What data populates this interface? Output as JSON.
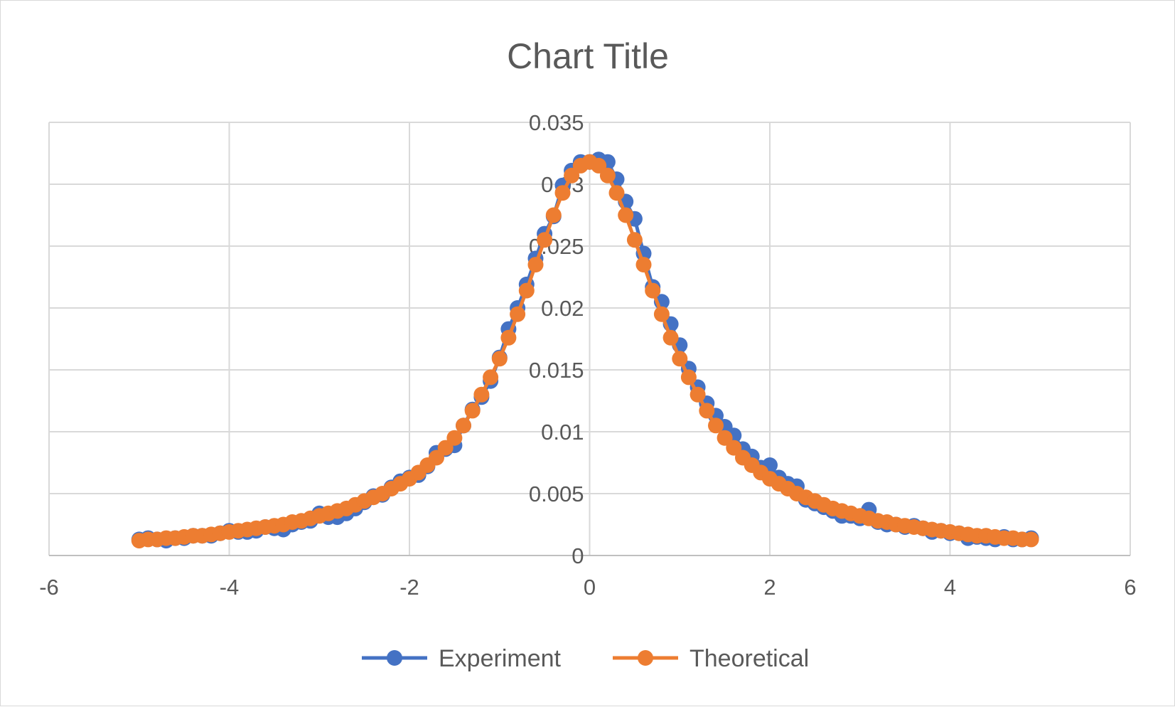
{
  "chart_data": {
    "type": "scatter",
    "title": "Chart Title",
    "xlabel": "",
    "ylabel": "",
    "xlim": [
      -6,
      6
    ],
    "ylim": [
      0,
      0.035
    ],
    "x_ticks": [
      "-6",
      "-4",
      "-2",
      "0",
      "2",
      "4",
      "6"
    ],
    "y_ticks": [
      "0",
      "0.005",
      "0.01",
      "0.015",
      "0.02",
      "0.025",
      "0.03",
      "0.035"
    ],
    "grid": true,
    "legend_position": "bottom",
    "series": [
      {
        "name": "Experiment",
        "color": "#4472C4",
        "x": [
          -5.0,
          -4.9,
          -4.8,
          -4.7,
          -4.6,
          -4.5,
          -4.4,
          -4.3,
          -4.2,
          -4.1,
          -4.0,
          -3.9,
          -3.8,
          -3.7,
          -3.6,
          -3.5,
          -3.4,
          -3.3,
          -3.2,
          -3.1,
          -3.0,
          -2.9,
          -2.8,
          -2.7,
          -2.6,
          -2.5,
          -2.4,
          -2.3,
          -2.2,
          -2.1,
          -2.0,
          -1.9,
          -1.8,
          -1.7,
          -1.6,
          -1.5,
          -1.4,
          -1.3,
          -1.2,
          -1.1,
          -1.0,
          -0.9,
          -0.8,
          -0.7,
          -0.6,
          -0.5,
          -0.4,
          -0.3,
          -0.2,
          -0.1,
          0.0,
          0.1,
          0.2,
          0.3,
          0.4,
          0.5,
          0.6,
          0.7,
          0.8,
          0.9,
          1.0,
          1.1,
          1.2,
          1.3,
          1.4,
          1.5,
          1.6,
          1.7,
          1.8,
          1.9,
          2.0,
          2.1,
          2.2,
          2.3,
          2.4,
          2.5,
          2.6,
          2.7,
          2.8,
          2.9,
          3.0,
          3.1,
          3.2,
          3.3,
          3.4,
          3.5,
          3.6,
          3.7,
          3.8,
          3.9,
          4.0,
          4.1,
          4.2,
          4.3,
          4.4,
          4.5,
          4.6,
          4.7,
          4.8,
          4.9
        ],
        "y": [
          0.0013,
          0.0014,
          0.0013,
          0.0012,
          0.0014,
          0.0014,
          0.0016,
          0.0016,
          0.0016,
          0.0018,
          0.002,
          0.0019,
          0.0019,
          0.002,
          0.0023,
          0.0022,
          0.0021,
          0.0025,
          0.0027,
          0.0028,
          0.0034,
          0.0031,
          0.0031,
          0.0034,
          0.0038,
          0.0043,
          0.0048,
          0.0049,
          0.0055,
          0.006,
          0.0063,
          0.0065,
          0.0072,
          0.0083,
          0.0086,
          0.0089,
          0.0105,
          0.0118,
          0.0128,
          0.0141,
          0.016,
          0.0183,
          0.02,
          0.0219,
          0.024,
          0.026,
          0.0274,
          0.0299,
          0.0311,
          0.0318,
          0.0318,
          0.032,
          0.0318,
          0.0304,
          0.0286,
          0.0272,
          0.0244,
          0.0217,
          0.0205,
          0.0187,
          0.017,
          0.0151,
          0.0136,
          0.0123,
          0.0113,
          0.0104,
          0.0097,
          0.0086,
          0.008,
          0.0071,
          0.0073,
          0.0063,
          0.0058,
          0.0056,
          0.0045,
          0.0042,
          0.0039,
          0.0036,
          0.0032,
          0.0032,
          0.003,
          0.0037,
          0.0027,
          0.0025,
          0.0025,
          0.0023,
          0.0024,
          0.0022,
          0.0019,
          0.002,
          0.0018,
          0.0018,
          0.0014,
          0.0015,
          0.0014,
          0.0013,
          0.0015,
          0.0013,
          0.0013,
          0.0014
        ]
      },
      {
        "name": "Theoretical",
        "color": "#ED7D31",
        "x": [
          -5.0,
          -4.9,
          -4.8,
          -4.7,
          -4.6,
          -4.5,
          -4.4,
          -4.3,
          -4.2,
          -4.1,
          -4.0,
          -3.9,
          -3.8,
          -3.7,
          -3.6,
          -3.5,
          -3.4,
          -3.3,
          -3.2,
          -3.1,
          -3.0,
          -2.9,
          -2.8,
          -2.7,
          -2.6,
          -2.5,
          -2.4,
          -2.3,
          -2.2,
          -2.1,
          -2.0,
          -1.9,
          -1.8,
          -1.7,
          -1.6,
          -1.5,
          -1.4,
          -1.3,
          -1.2,
          -1.1,
          -1.0,
          -0.9,
          -0.8,
          -0.7,
          -0.6,
          -0.5,
          -0.4,
          -0.3,
          -0.2,
          -0.1,
          0.0,
          0.1,
          0.2,
          0.3,
          0.4,
          0.5,
          0.6,
          0.7,
          0.8,
          0.9,
          1.0,
          1.1,
          1.2,
          1.3,
          1.4,
          1.5,
          1.6,
          1.7,
          1.8,
          1.9,
          2.0,
          2.1,
          2.2,
          2.3,
          2.4,
          2.5,
          2.6,
          2.7,
          2.8,
          2.9,
          3.0,
          3.1,
          3.2,
          3.3,
          3.4,
          3.5,
          3.6,
          3.7,
          3.8,
          3.9,
          4.0,
          4.1,
          4.2,
          4.3,
          4.4,
          4.5,
          4.6,
          4.7,
          4.8,
          4.9
        ],
        "y": [
          0.0012,
          0.0013,
          0.0013,
          0.0014,
          0.0014,
          0.0015,
          0.0016,
          0.0016,
          0.0017,
          0.0018,
          0.0019,
          0.002,
          0.0021,
          0.0022,
          0.0023,
          0.0024,
          0.0025,
          0.0027,
          0.0028,
          0.003,
          0.0032,
          0.0034,
          0.0036,
          0.0038,
          0.0041,
          0.0044,
          0.0047,
          0.005,
          0.0054,
          0.0058,
          0.0062,
          0.0067,
          0.0073,
          0.0079,
          0.0087,
          0.0095,
          0.0105,
          0.0117,
          0.013,
          0.0144,
          0.0159,
          0.0176,
          0.0195,
          0.0214,
          0.0235,
          0.0255,
          0.0275,
          0.0293,
          0.0307,
          0.0315,
          0.0318,
          0.0315,
          0.0307,
          0.0293,
          0.0275,
          0.0255,
          0.0235,
          0.0214,
          0.0195,
          0.0176,
          0.0159,
          0.0144,
          0.013,
          0.0117,
          0.0105,
          0.0095,
          0.0087,
          0.0079,
          0.0073,
          0.0067,
          0.0062,
          0.0058,
          0.0054,
          0.005,
          0.0047,
          0.0044,
          0.0041,
          0.0038,
          0.0036,
          0.0034,
          0.0032,
          0.003,
          0.0028,
          0.0027,
          0.0025,
          0.0024,
          0.0023,
          0.0022,
          0.0021,
          0.002,
          0.0019,
          0.0018,
          0.0017,
          0.0016,
          0.0016,
          0.0015,
          0.0014,
          0.0014,
          0.0013,
          0.0013
        ]
      }
    ]
  }
}
